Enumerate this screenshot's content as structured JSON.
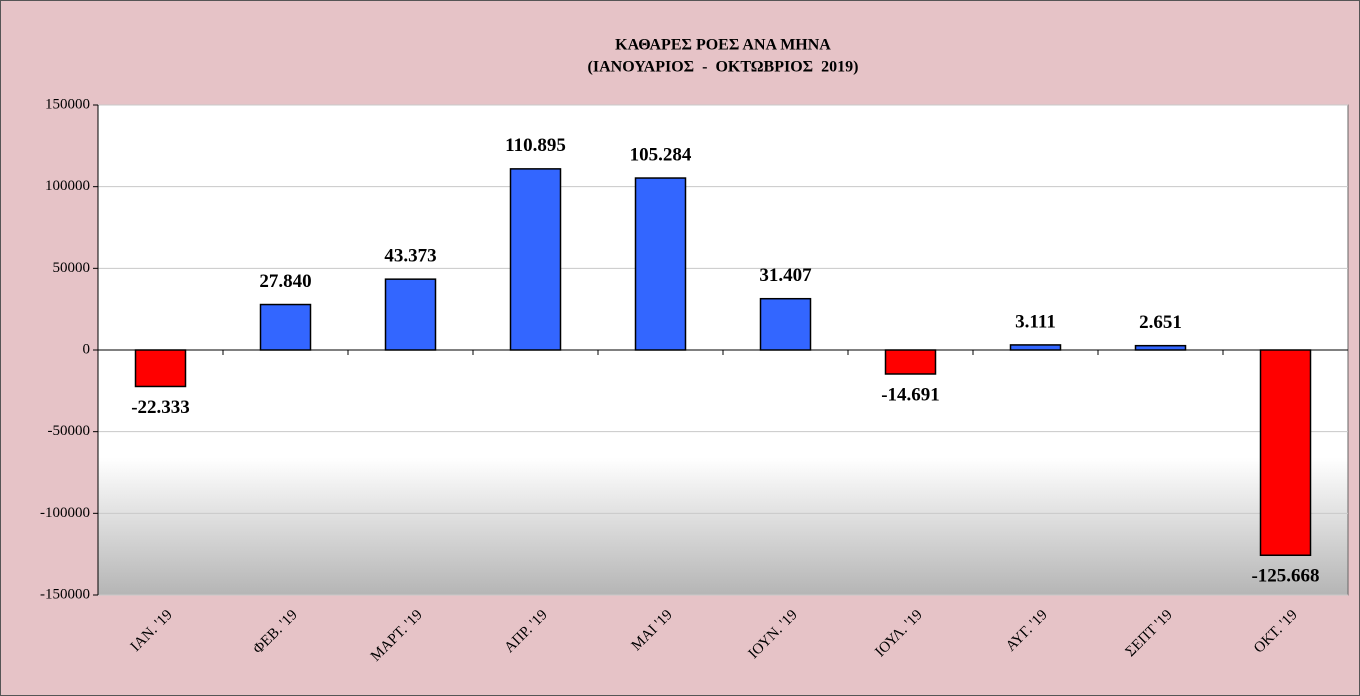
{
  "chart_data": {
    "type": "bar",
    "title": "ΚΑΘΑΡΕΣ ΡΟΕΣ ΑΝΑ ΜΗΝΑ",
    "subtitle": "(ΙΑΝΟΥΑΡΙΟΣ  -  ΟΚΤΩΒΡΙΟΣ  2019)",
    "categories": [
      "ΙΑΝ. '19",
      "ΦΕΒ. '19",
      "ΜΑΡΤ. '19",
      "ΑΠΡ. '19",
      "ΜΑΙ '19",
      "ΙΟΥΝ. '19",
      "ΙΟΥΛ. '19",
      "ΑΥΓ. '19",
      "ΣΕΠΤ '19",
      "ΟΚΤ. '19"
    ],
    "values": [
      -22333,
      27840,
      43373,
      110895,
      105284,
      31407,
      -14691,
      3111,
      2651,
      -125668
    ],
    "value_labels": [
      "-22.333",
      "27.840",
      "43.373",
      "110.895",
      "105.284",
      "31.407",
      "-14.691",
      "3.111",
      "2.651",
      "-125.668"
    ],
    "colors": [
      "#ff0000",
      "#3366ff",
      "#3366ff",
      "#3366ff",
      "#3366ff",
      "#3366ff",
      "#ff0000",
      "#3366ff",
      "#3366ff",
      "#ff0000"
    ],
    "ylim": [
      -150000,
      150000
    ],
    "yticks": [
      -150000,
      -100000,
      -50000,
      0,
      50000,
      100000,
      150000
    ],
    "grid": true
  }
}
